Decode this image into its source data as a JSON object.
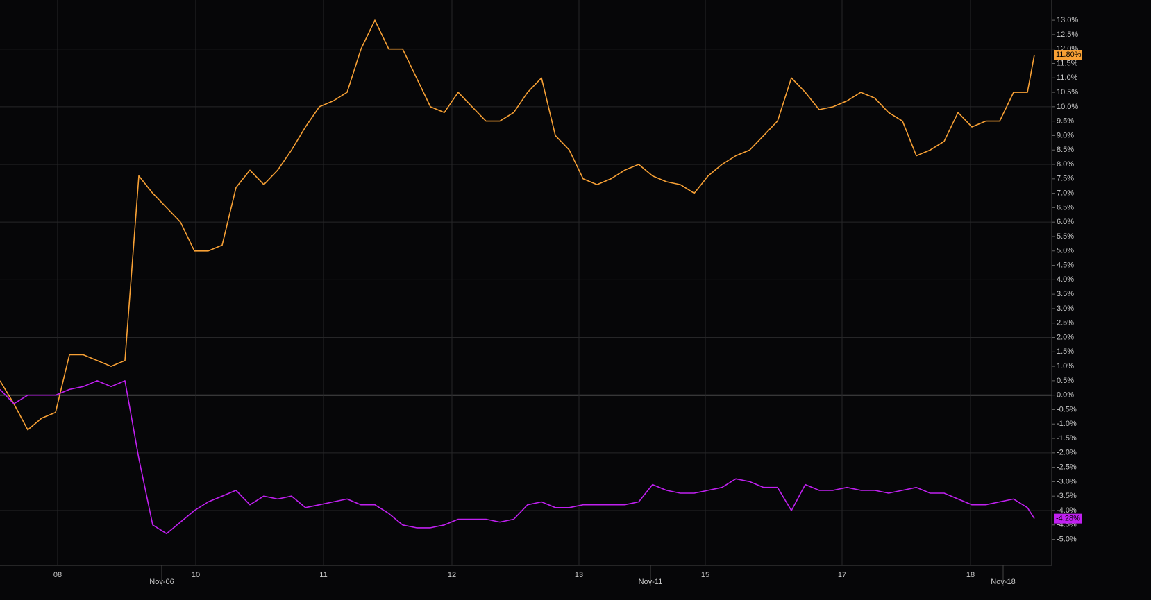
{
  "chart_data": {
    "type": "line",
    "x": [
      0,
      20,
      40,
      60,
      80,
      100,
      120,
      140,
      160,
      180,
      200,
      220,
      240,
      260,
      280,
      300,
      320,
      340,
      360,
      380,
      400,
      420,
      440,
      460,
      480,
      500,
      520,
      540,
      560,
      580,
      600,
      620,
      640,
      660,
      680,
      700,
      720,
      740,
      760,
      780,
      800,
      820,
      840,
      860,
      880,
      900,
      920,
      940,
      960,
      980,
      1000,
      1020,
      1040,
      1060,
      1080,
      1100,
      1120,
      1140,
      1160,
      1180,
      1200,
      1220,
      1240,
      1260,
      1280,
      1300,
      1320,
      1340,
      1360,
      1380,
      1400,
      1420,
      1440,
      1460,
      1480,
      1490
    ],
    "series": [
      {
        "color": "#f7a035",
        "values": [
          0.5,
          -0.3,
          -1.2,
          -0.8,
          -0.6,
          1.4,
          1.4,
          1.2,
          1.0,
          1.2,
          7.6,
          7.0,
          6.5,
          6.0,
          5.0,
          5.0,
          5.2,
          7.2,
          7.8,
          7.3,
          7.8,
          8.5,
          9.3,
          10.0,
          10.2,
          10.5,
          12.0,
          13.0,
          12.0,
          12.0,
          11.0,
          10.0,
          9.8,
          10.5,
          10.0,
          9.5,
          9.5,
          9.8,
          10.5,
          11.0,
          9.0,
          8.5,
          7.5,
          7.3,
          7.5,
          7.8,
          8.0,
          7.6,
          7.4,
          7.3,
          7.0,
          7.6,
          8.0,
          8.3,
          8.5,
          9.0,
          9.5,
          11.0,
          10.5,
          9.9,
          10.0,
          10.2,
          10.5,
          10.3,
          9.8,
          9.5,
          8.3,
          8.5,
          8.8,
          9.8,
          9.3,
          9.5,
          9.5,
          10.5,
          10.5,
          11.8
        ],
        "value_labels": [
          null,
          null,
          null,
          null,
          null,
          null,
          null,
          null,
          null,
          null,
          null,
          null,
          null,
          null,
          null,
          null,
          null,
          null,
          null,
          null,
          null,
          null,
          null,
          null,
          null,
          null,
          null,
          null,
          null,
          null,
          null,
          null,
          null,
          null,
          null,
          null,
          null,
          null,
          null,
          null,
          null,
          null,
          null,
          null,
          null,
          null,
          null,
          null,
          null,
          null,
          null,
          null,
          null,
          null,
          null,
          null,
          null,
          null,
          null,
          null,
          null,
          null,
          null,
          null,
          null,
          null,
          null,
          null,
          null,
          null,
          null,
          null,
          null,
          null,
          null,
          "11.80%"
        ]
      },
      {
        "color": "#c020f0",
        "values": [
          0.2,
          -0.3,
          0,
          0,
          0,
          0.2,
          0.3,
          0.5,
          0.3,
          0.5,
          -2.2,
          -4.5,
          -4.8,
          -4.4,
          -4.0,
          -3.7,
          -3.5,
          -3.3,
          -3.8,
          -3.5,
          -3.6,
          -3.5,
          -3.9,
          -3.8,
          -3.7,
          -3.6,
          -3.8,
          -3.8,
          -4.1,
          -4.5,
          -4.6,
          -4.6,
          -4.5,
          -4.3,
          -4.3,
          -4.3,
          -4.4,
          -4.3,
          -3.8,
          -3.7,
          -3.9,
          -3.9,
          -3.8,
          -3.8,
          -3.8,
          -3.8,
          -3.7,
          -3.1,
          -3.3,
          -3.4,
          -3.4,
          -3.3,
          -3.2,
          -2.9,
          -3.0,
          -3.2,
          -3.2,
          -4.0,
          -3.1,
          -3.3,
          -3.3,
          -3.2,
          -3.3,
          -3.3,
          -3.4,
          -3.3,
          -3.2,
          -3.4,
          -3.4,
          -3.6,
          -3.8,
          -3.8,
          -3.7,
          -3.6,
          -3.9,
          -4.28
        ],
        "value_labels": [
          null,
          null,
          null,
          null,
          null,
          null,
          null,
          null,
          null,
          null,
          null,
          null,
          null,
          null,
          null,
          null,
          null,
          null,
          null,
          null,
          null,
          null,
          null,
          null,
          null,
          null,
          null,
          null,
          null,
          null,
          null,
          null,
          null,
          null,
          null,
          null,
          null,
          null,
          null,
          null,
          null,
          null,
          null,
          null,
          null,
          null,
          null,
          null,
          null,
          null,
          null,
          null,
          null,
          null,
          null,
          null,
          null,
          null,
          null,
          null,
          null,
          null,
          null,
          null,
          null,
          null,
          null,
          null,
          null,
          null,
          null,
          null,
          null,
          null,
          null,
          "-4.28%"
        ]
      }
    ],
    "xlim": [
      0,
      1515
    ],
    "xticks": [
      {
        "value": 83,
        "label": "08"
      },
      {
        "value": 282,
        "label": "10"
      },
      {
        "value": 466,
        "label": "11"
      },
      {
        "value": 651,
        "label": "12"
      },
      {
        "value": 834,
        "label": "13"
      },
      {
        "value": 1016,
        "label": "15"
      },
      {
        "value": 1213,
        "label": "17"
      },
      {
        "value": 1398,
        "label": "18"
      }
    ],
    "month_ticks": [
      {
        "value": 233,
        "label": "Nov-06"
      },
      {
        "value": 937,
        "label": "Nov-11"
      },
      {
        "value": 1445,
        "label": "Nov-18"
      }
    ],
    "ylim": [
      -5.9,
      13.7
    ],
    "yticks": [
      {
        "value": 13,
        "label": "13.0%"
      },
      {
        "value": 12.5,
        "label": "12.5%"
      },
      {
        "value": 12,
        "label": "12.0%"
      },
      {
        "value": 11.5,
        "label": "11.5%"
      },
      {
        "value": 11,
        "label": "11.0%"
      },
      {
        "value": 10.5,
        "label": "10.5%"
      },
      {
        "value": 10,
        "label": "10.0%"
      },
      {
        "value": 9.5,
        "label": "9.5%"
      },
      {
        "value": 9,
        "label": "9.0%"
      },
      {
        "value": 8.5,
        "label": "8.5%"
      },
      {
        "value": 8,
        "label": "8.0%"
      },
      {
        "value": 7.5,
        "label": "7.5%"
      },
      {
        "value": 7,
        "label": "7.0%"
      },
      {
        "value": 6.5,
        "label": "6.5%"
      },
      {
        "value": 6,
        "label": "6.0%"
      },
      {
        "value": 5.5,
        "label": "5.5%"
      },
      {
        "value": 5,
        "label": "5.0%"
      },
      {
        "value": 4.5,
        "label": "4.5%"
      },
      {
        "value": 4,
        "label": "4.0%"
      },
      {
        "value": 3.5,
        "label": "3.5%"
      },
      {
        "value": 3,
        "label": "3.0%"
      },
      {
        "value": 2.5,
        "label": "2.5%"
      },
      {
        "value": 2,
        "label": "2.0%"
      },
      {
        "value": 1.5,
        "label": "1.5%"
      },
      {
        "value": 1,
        "label": "1.0%"
      },
      {
        "value": 0.5,
        "label": "0.5%"
      },
      {
        "value": 0,
        "label": "0.0%"
      },
      {
        "value": -0.5,
        "label": "-0.5%"
      },
      {
        "value": -1,
        "label": "-1.0%"
      },
      {
        "value": -1.5,
        "label": "-1.5%"
      },
      {
        "value": -2,
        "label": "-2.0%"
      },
      {
        "value": -2.5,
        "label": "-2.5%"
      },
      {
        "value": -3,
        "label": "-3.0%"
      },
      {
        "value": -3.5,
        "label": "-3.5%"
      },
      {
        "value": -4,
        "label": "-4.0%"
      },
      {
        "value": -4.5,
        "label": "-4.5%"
      },
      {
        "value": -5,
        "label": "-5.0%"
      }
    ],
    "grid": true
  }
}
